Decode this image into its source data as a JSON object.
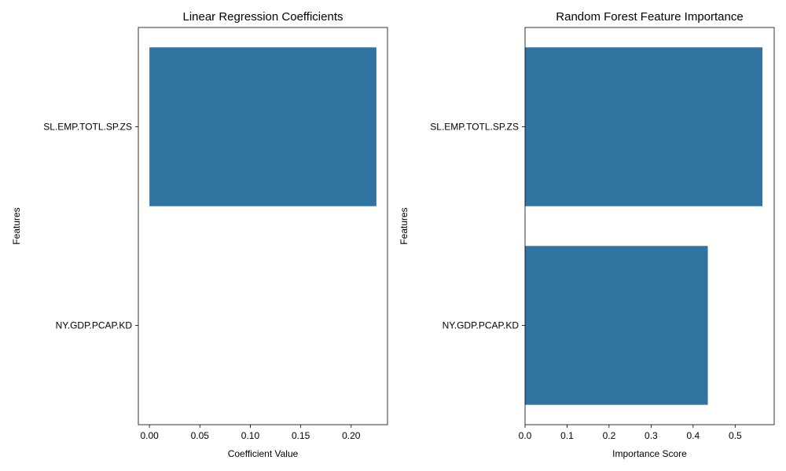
{
  "chart_data": [
    {
      "type": "bar",
      "orientation": "horizontal",
      "title": "Linear Regression Coefficients",
      "xlabel": "Coefficient Value",
      "ylabel": "Features",
      "categories": [
        "SL.EMP.TOTL.SP.ZS",
        "NY.GDP.PCAP.KD"
      ],
      "values": [
        0.225,
        0.0
      ],
      "xlim": [
        -0.011,
        0.236
      ],
      "xticks": [
        0.0,
        0.05,
        0.1,
        0.15,
        0.2
      ],
      "xtick_labels": [
        "0.00",
        "0.05",
        "0.10",
        "0.15",
        "0.20"
      ],
      "color": "#3274a1",
      "grid": false,
      "legend": null
    },
    {
      "type": "bar",
      "orientation": "horizontal",
      "title": "Random Forest Feature Importance",
      "xlabel": "Importance Score",
      "ylabel": "Features",
      "categories": [
        "SL.EMP.TOTL.SP.ZS",
        "NY.GDP.PCAP.KD"
      ],
      "values": [
        0.565,
        0.435
      ],
      "xlim": [
        0.0,
        0.593
      ],
      "xticks": [
        0.0,
        0.1,
        0.2,
        0.3,
        0.4,
        0.5
      ],
      "xtick_labels": [
        "0.0",
        "0.1",
        "0.2",
        "0.3",
        "0.4",
        "0.5"
      ],
      "color": "#3274a1",
      "grid": false,
      "legend": null
    }
  ]
}
